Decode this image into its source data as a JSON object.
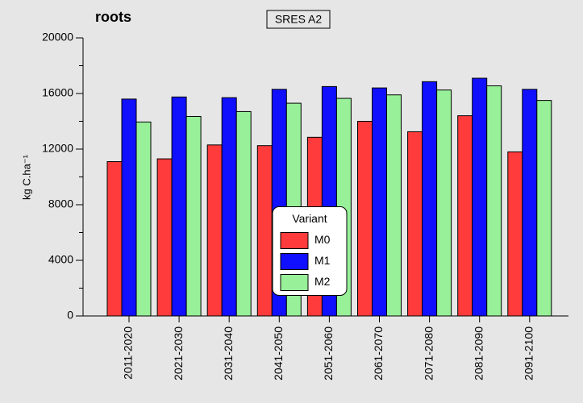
{
  "chart_data": {
    "type": "bar",
    "title": "roots",
    "annotation": "SRES A2",
    "ylabel": "kg C.ha⁻¹",
    "categories": [
      "2011-2020",
      "2021-2030",
      "2031-2040",
      "2041-2050",
      "2051-2060",
      "2061-2070",
      "2071-2080",
      "2081-2090",
      "2091-2100"
    ],
    "series": [
      {
        "name": "M0",
        "color": "#ff3b3b",
        "values": [
          11100,
          11300,
          12300,
          12250,
          12850,
          14000,
          13250,
          14400,
          11800
        ]
      },
      {
        "name": "M1",
        "color": "#1010ff",
        "values": [
          15600,
          15750,
          15700,
          16300,
          16500,
          16400,
          16850,
          17100,
          16300
        ]
      },
      {
        "name": "M2",
        "color": "#98f098",
        "values": [
          13950,
          14350,
          14700,
          15300,
          15650,
          15900,
          16250,
          16550,
          15500
        ]
      }
    ],
    "legend_title": "Variant",
    "legend_position": "center",
    "ylim": [
      0,
      20000
    ],
    "yticks": [
      0,
      4000,
      8000,
      12000,
      16000,
      20000
    ],
    "grid": false
  }
}
